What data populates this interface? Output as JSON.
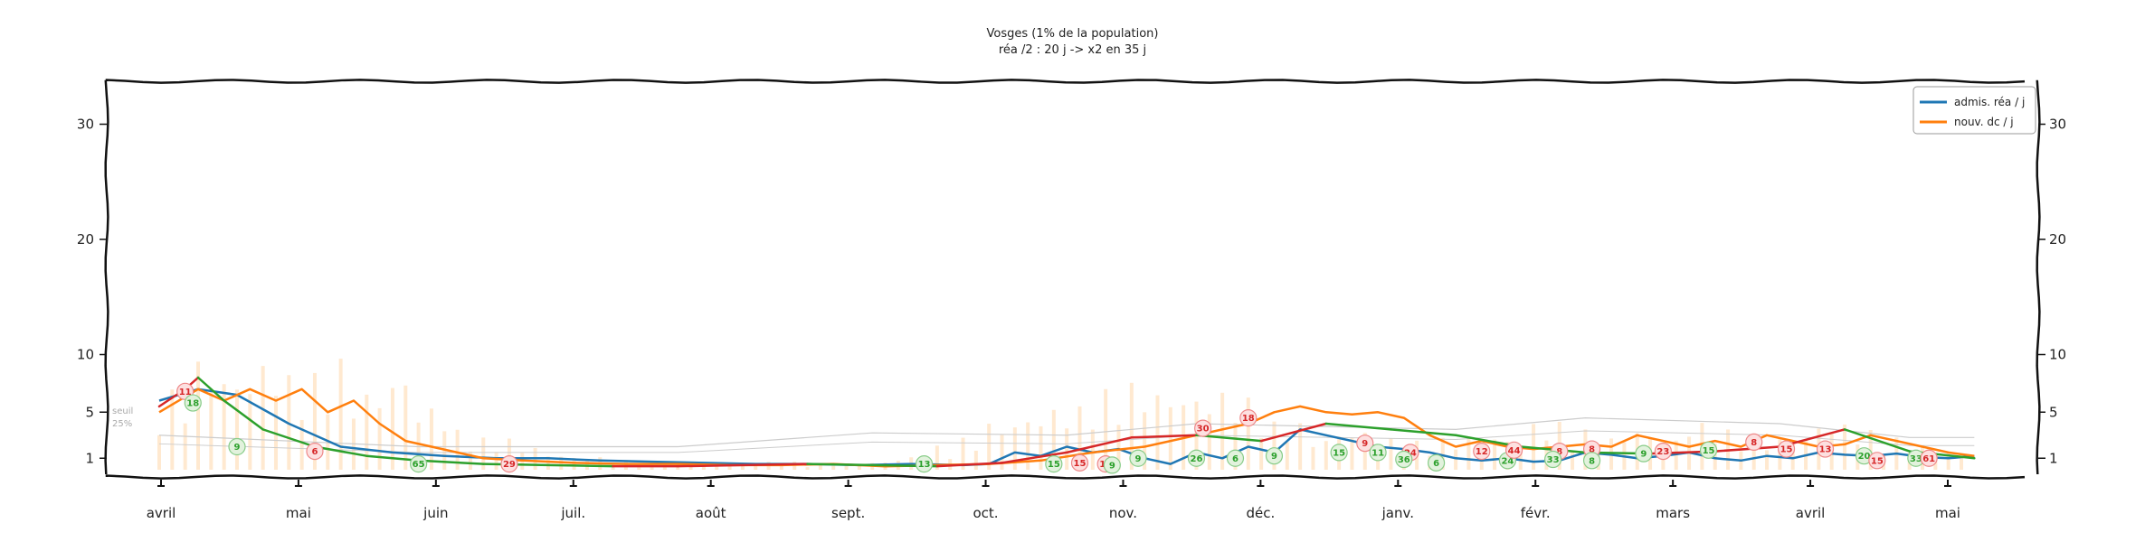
{
  "chart_data": {
    "type": "line",
    "title_line1": "Vosges (1% de la population)",
    "title_line2": "réa /2 : 20 j -> x2 en 35 j",
    "ylim": [
      0,
      32
    ],
    "y_ticks": [
      1,
      5,
      10,
      20,
      30
    ],
    "month_labels": [
      "avril",
      "mai",
      "juin",
      "juil.",
      "août",
      "sept.",
      "oct.",
      "nov.",
      "déc.",
      "janv.",
      "févr.",
      "mars",
      "avril",
      "mai"
    ],
    "annotation_seuil": "seuil",
    "annotation_pct": "25%",
    "legend": [
      {
        "name": "admis. réa / j",
        "color": "#1f77b4"
      },
      {
        "name": "nouv. dc / j",
        "color": "#ff7f0e"
      }
    ],
    "colors": {
      "rea": "#1f77b4",
      "dc": "#ff7f0e",
      "decreasing": "#2ca02c",
      "increasing": "#d62728",
      "bars": "#ffe4c4",
      "threshold": "#cccccc"
    },
    "series": [
      {
        "name": "admis. réa / j",
        "x": [
          0,
          3,
          6,
          10,
          14,
          18,
          22,
          26,
          30,
          34,
          38,
          42,
          46,
          50,
          54,
          58,
          62,
          64,
          66,
          68,
          70,
          72,
          74,
          76,
          78,
          80,
          82,
          84,
          86,
          88,
          90,
          92,
          94,
          96,
          98,
          100,
          102,
          104,
          106,
          108,
          110,
          112,
          114,
          116,
          118,
          120,
          122,
          124,
          126,
          128,
          130,
          132,
          134,
          136,
          138,
          140
        ],
        "values": [
          6,
          7,
          6.5,
          4,
          2,
          1.5,
          1.2,
          1,
          1,
          0.8,
          0.7,
          0.6,
          0.5,
          0.5,
          0.4,
          0.5,
          0.4,
          0.5,
          1.5,
          1.2,
          2,
          1.5,
          1.8,
          1,
          0.5,
          1.5,
          1,
          2,
          1.5,
          3.5,
          3,
          2.5,
          2,
          1.8,
          1.5,
          1,
          0.8,
          1,
          0.7,
          0.8,
          1.5,
          1.3,
          1,
          1.2,
          1.5,
          1,
          0.8,
          1.2,
          1,
          1.5,
          1.3,
          1.2,
          1.4,
          1.1,
          1,
          1.2
        ]
      },
      {
        "name": "nouv. dc / j",
        "x": [
          0,
          3,
          5,
          7,
          9,
          11,
          13,
          15,
          17,
          19,
          21,
          23,
          25,
          28,
          32,
          36,
          40,
          44,
          48,
          52,
          56,
          60,
          64,
          68,
          72,
          76,
          80,
          82,
          84,
          86,
          88,
          90,
          92,
          94,
          96,
          98,
          100,
          102,
          104,
          106,
          108,
          110,
          112,
          114,
          116,
          118,
          120,
          122,
          124,
          126,
          128,
          130,
          132,
          134,
          136,
          138,
          140
        ],
        "values": [
          5,
          7,
          6,
          7,
          6,
          7,
          5,
          6,
          4,
          2.5,
          2,
          1.5,
          1,
          0.8,
          0.6,
          0.5,
          0.5,
          0.4,
          0.4,
          0.5,
          0.3,
          0.4,
          0.5,
          0.8,
          1.5,
          2,
          3,
          3.5,
          4,
          5,
          5.5,
          5,
          4.8,
          5,
          4.5,
          3,
          2,
          2.5,
          2,
          1.8,
          2,
          2.2,
          2,
          3,
          2.5,
          2,
          2.5,
          2,
          3,
          2.5,
          2,
          2.2,
          3,
          2.5,
          2,
          1.5,
          1.2
        ]
      },
      {
        "name": "trend",
        "x": [
          0,
          2,
          3,
          5,
          8,
          12,
          16,
          20,
          25,
          30,
          35,
          40,
          45,
          50,
          55,
          60,
          65,
          70,
          75,
          80,
          85,
          90,
          95,
          100,
          105,
          110,
          115,
          120,
          125,
          130,
          135,
          140
        ],
        "values": [
          5.5,
          7,
          8,
          6,
          3.5,
          2,
          1.2,
          0.8,
          0.5,
          0.4,
          0.3,
          0.3,
          0.4,
          0.5,
          0.4,
          0.3,
          0.6,
          1.5,
          2.8,
          3,
          2.5,
          4,
          3.5,
          3,
          2,
          1.5,
          1.4,
          1.6,
          2,
          3.5,
          1.6,
          1
        ]
      }
    ],
    "badges": [
      {
        "x": 2,
        "y": 6.8,
        "label": "11",
        "trend": "up"
      },
      {
        "x": 2.6,
        "y": 5.8,
        "label": "18",
        "trend": "down"
      },
      {
        "x": 6,
        "y": 2,
        "label": "9",
        "trend": "down"
      },
      {
        "x": 12,
        "y": 1.6,
        "label": "6",
        "trend": "up"
      },
      {
        "x": 20,
        "y": 0.5,
        "label": "65",
        "trend": "down"
      },
      {
        "x": 27,
        "y": 0.5,
        "label": "29",
        "trend": "up"
      },
      {
        "x": 59,
        "y": 0.5,
        "label": "13",
        "trend": "down"
      },
      {
        "x": 69,
        "y": 0.5,
        "label": "15",
        "trend": "down"
      },
      {
        "x": 71,
        "y": 0.6,
        "label": "15",
        "trend": "up"
      },
      {
        "x": 73,
        "y": 0.5,
        "label": "16",
        "trend": "up"
      },
      {
        "x": 73.5,
        "y": 0.4,
        "label": "9",
        "trend": "down"
      },
      {
        "x": 75.5,
        "y": 1,
        "label": "9",
        "trend": "down"
      },
      {
        "x": 80.5,
        "y": 3.6,
        "label": "30",
        "trend": "up"
      },
      {
        "x": 80,
        "y": 1,
        "label": "26",
        "trend": "down"
      },
      {
        "x": 84,
        "y": 4.5,
        "label": "18",
        "trend": "up"
      },
      {
        "x": 83,
        "y": 1,
        "label": "6",
        "trend": "down"
      },
      {
        "x": 86,
        "y": 1.2,
        "label": "9",
        "trend": "down"
      },
      {
        "x": 91,
        "y": 1.5,
        "label": "15",
        "trend": "down"
      },
      {
        "x": 93,
        "y": 2.3,
        "label": "9",
        "trend": "up"
      },
      {
        "x": 94,
        "y": 1.5,
        "label": "11",
        "trend": "down"
      },
      {
        "x": 96.5,
        "y": 1.5,
        "label": "24",
        "trend": "up"
      },
      {
        "x": 96,
        "y": 0.9,
        "label": "36",
        "trend": "down"
      },
      {
        "x": 98.5,
        "y": 0.6,
        "label": "6",
        "trend": "down"
      },
      {
        "x": 102,
        "y": 1.6,
        "label": "12",
        "trend": "up"
      },
      {
        "x": 104,
        "y": 0.8,
        "label": "24",
        "trend": "down"
      },
      {
        "x": 104.5,
        "y": 1.7,
        "label": "44",
        "trend": "up"
      },
      {
        "x": 108,
        "y": 1.6,
        "label": "8",
        "trend": "up"
      },
      {
        "x": 107.5,
        "y": 0.9,
        "label": "33",
        "trend": "down"
      },
      {
        "x": 110.5,
        "y": 1.8,
        "label": "8",
        "trend": "up"
      },
      {
        "x": 110.5,
        "y": 0.8,
        "label": "8",
        "trend": "down"
      },
      {
        "x": 114.5,
        "y": 1.4,
        "label": "9",
        "trend": "down"
      },
      {
        "x": 116,
        "y": 1.6,
        "label": "23",
        "trend": "up"
      },
      {
        "x": 119.5,
        "y": 1.7,
        "label": "15",
        "trend": "down"
      },
      {
        "x": 123,
        "y": 2.4,
        "label": "8",
        "trend": "up"
      },
      {
        "x": 125.5,
        "y": 1.8,
        "label": "15",
        "trend": "up"
      },
      {
        "x": 128.5,
        "y": 1.8,
        "label": "13",
        "trend": "up"
      },
      {
        "x": 131.5,
        "y": 1.2,
        "label": "20",
        "trend": "down"
      },
      {
        "x": 132.5,
        "y": 0.8,
        "label": "15",
        "trend": "up"
      },
      {
        "x": 135.5,
        "y": 1,
        "label": "33",
        "trend": "down"
      },
      {
        "x": 136.5,
        "y": 1,
        "label": "61",
        "trend": "up"
      }
    ]
  }
}
